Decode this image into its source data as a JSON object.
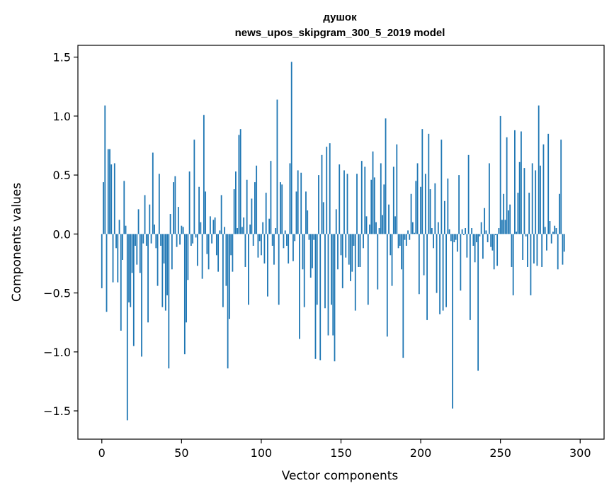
{
  "chart_data": {
    "type": "bar",
    "title": "душок",
    "subtitle": "news_upos_skipgram_300_5_2019 model",
    "xlabel": "Vector components",
    "ylabel": "Components values",
    "xlim": [
      -15,
      315
    ],
    "ylim": [
      -1.74,
      1.6
    ],
    "xticks": [
      0,
      50,
      100,
      150,
      200,
      250,
      300
    ],
    "xtick_labels": [
      "0",
      "50",
      "100",
      "150",
      "200",
      "250",
      "300"
    ],
    "yticks": [
      -1.5,
      -1.0,
      -0.5,
      0.0,
      0.5,
      1.0,
      1.5
    ],
    "ytick_labels": [
      "−1.5",
      "−1.0",
      "−0.5",
      "0.0",
      "0.5",
      "1.0",
      "1.5"
    ],
    "grid": false,
    "legend": "none",
    "series": [
      {
        "color": "#1f77b4",
        "x_start": 0,
        "values": [
          -0.46,
          0.44,
          1.09,
          -0.66,
          0.72,
          0.72,
          0.59,
          -0.41,
          0.6,
          -0.12,
          -0.41,
          0.12,
          -0.82,
          -0.22,
          0.45,
          0.07,
          -1.58,
          -0.58,
          -0.62,
          -0.33,
          -0.95,
          -0.1,
          -0.26,
          0.21,
          -0.33,
          -1.04,
          -0.08,
          0.33,
          -0.1,
          -0.75,
          0.25,
          -0.08,
          0.69,
          0.08,
          -0.12,
          -0.44,
          0.51,
          -0.1,
          -0.62,
          -0.25,
          -0.65,
          -0.52,
          -1.14,
          0.17,
          -0.3,
          0.44,
          0.49,
          -0.11,
          0.23,
          -0.09,
          0.07,
          0.06,
          -1.02,
          -0.75,
          -0.39,
          0.53,
          -0.1,
          -0.08,
          0.8,
          -0.03,
          -0.27,
          0.4,
          0.1,
          -0.38,
          1.01,
          0.36,
          -0.17,
          -0.3,
          0.15,
          -0.08,
          0.12,
          0.14,
          -0.18,
          -0.32,
          0.03,
          0.33,
          -0.62,
          0.06,
          -0.44,
          -1.14,
          -0.72,
          -0.18,
          -0.32,
          0.38,
          0.53,
          0.05,
          0.84,
          0.89,
          0.06,
          0.14,
          -0.28,
          0.46,
          -0.6,
          0.08,
          0.3,
          -0.1,
          0.44,
          0.58,
          -0.2,
          -0.06,
          -0.18,
          0.1,
          -0.25,
          0.35,
          -0.53,
          0.13,
          0.62,
          -0.1,
          -0.26,
          0.05,
          1.14,
          -0.6,
          0.44,
          0.42,
          -0.12,
          0.03,
          -0.1,
          -0.25,
          0.6,
          1.46,
          -0.23,
          -0.06,
          0.36,
          0.54,
          -0.89,
          0.52,
          -0.3,
          -0.62,
          0.36,
          0.2,
          -0.05,
          -0.37,
          -0.29,
          -0.05,
          -1.06,
          -0.6,
          0.5,
          -1.07,
          0.67,
          0.27,
          -0.63,
          0.74,
          -0.86,
          0.77,
          -0.6,
          -0.86,
          -1.08,
          0.21,
          -0.3,
          0.59,
          -0.18,
          -0.46,
          0.54,
          -0.2,
          0.51,
          -0.26,
          -0.4,
          -0.32,
          -0.1,
          -0.65,
          0.51,
          -0.28,
          -0.28,
          0.62,
          -0.12,
          0.57,
          0.15,
          -0.6,
          0.08,
          0.46,
          0.7,
          0.48,
          0.1,
          -0.47,
          0.05,
          0.6,
          0.16,
          0.42,
          0.98,
          -0.87,
          0.25,
          -0.18,
          -0.44,
          0.57,
          0.15,
          0.76,
          -0.12,
          -0.1,
          -0.3,
          -1.05,
          -0.05,
          -0.1,
          0.03,
          -0.05,
          0.34,
          0.1,
          0.01,
          0.45,
          0.6,
          -0.51,
          0.4,
          0.89,
          -0.35,
          0.51,
          -0.73,
          0.85,
          0.38,
          0.05,
          -0.12,
          0.43,
          -0.5,
          0.1,
          -0.68,
          0.8,
          -0.65,
          0.28,
          -0.62,
          0.47,
          0.04,
          -0.06,
          -1.48,
          -0.07,
          -0.05,
          -0.15,
          0.5,
          -0.48,
          0.04,
          -0.01,
          0.05,
          -0.2,
          0.67,
          -0.73,
          0.05,
          -0.1,
          -0.24,
          -0.07,
          -1.16,
          -0.02,
          0.1,
          -0.21,
          0.22,
          0.03,
          -0.07,
          0.6,
          -0.11,
          -0.14,
          -0.3,
          -0.01,
          -0.27,
          0.05,
          1.0,
          0.12,
          0.34,
          0.12,
          0.82,
          0.2,
          0.25,
          -0.28,
          -0.52,
          0.88,
          0.02,
          0.35,
          0.61,
          0.87,
          -0.22,
          0.56,
          -0.02,
          -0.28,
          0.35,
          -0.52,
          0.6,
          -0.25,
          0.54,
          -0.27,
          1.09,
          0.58,
          -0.28,
          0.76,
          0.06,
          -0.14,
          0.85,
          0.11,
          -0.08,
          0.02,
          0.07,
          0.05,
          -0.3,
          0.34,
          0.8,
          -0.26,
          -0.15
        ]
      }
    ]
  }
}
